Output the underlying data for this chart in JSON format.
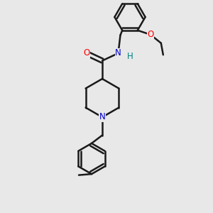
{
  "bg_color": "#e8e8e8",
  "bond_color": "#1a1a1a",
  "bond_width": 1.8,
  "atom_colors": {
    "O": "#ff0000",
    "N": "#0000cc",
    "H": "#008080",
    "C": "#1a1a1a"
  },
  "font_size": 8.5,
  "fig_size": [
    3.0,
    3.0
  ],
  "dpi": 100
}
